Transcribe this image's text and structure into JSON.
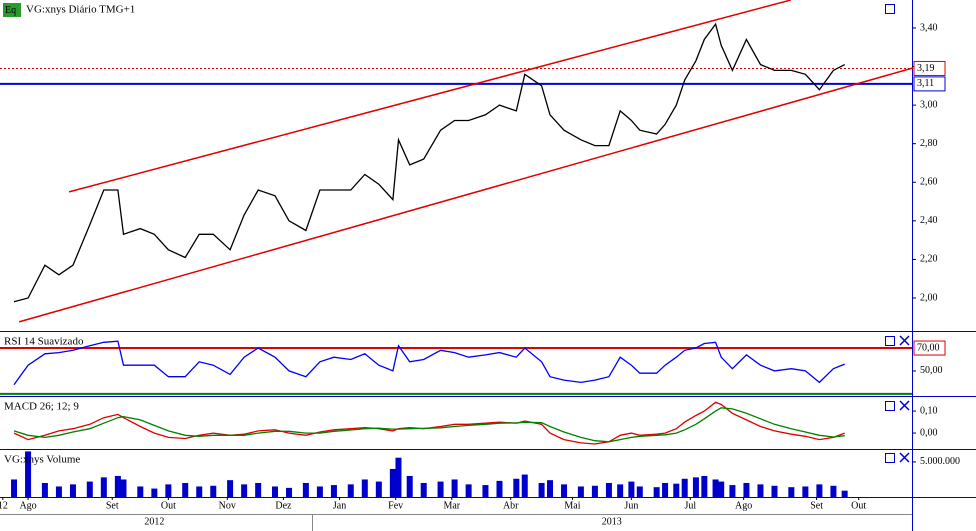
{
  "chart_data": [
    {
      "type": "line",
      "badge": "Eq",
      "title": "VG:xnys Diário TMG+1",
      "color": "#000000",
      "xlim": [
        -5,
        320
      ],
      "ylim": [
        1.834,
        3.545
      ],
      "x": [
        0,
        5,
        11,
        16,
        21,
        27,
        32,
        37,
        39,
        45,
        50,
        55,
        61,
        66,
        71,
        77,
        82,
        87,
        93,
        98,
        104,
        109,
        114,
        120,
        125,
        130,
        135,
        137,
        141,
        146,
        152,
        157,
        162,
        168,
        173,
        179,
        182,
        188,
        191,
        196,
        202,
        207,
        212,
        216,
        220,
        223,
        229,
        232,
        236,
        239,
        243,
        246,
        250,
        252,
        256,
        261,
        266,
        271,
        277,
        282,
        287,
        292,
        296
      ],
      "values": [
        1.98,
        2.0,
        2.17,
        2.12,
        2.17,
        2.38,
        2.56,
        2.56,
        2.33,
        2.36,
        2.33,
        2.25,
        2.21,
        2.33,
        2.33,
        2.25,
        2.43,
        2.56,
        2.53,
        2.4,
        2.35,
        2.56,
        2.56,
        2.56,
        2.64,
        2.59,
        2.51,
        2.82,
        2.69,
        2.72,
        2.87,
        2.92,
        2.92,
        2.95,
        3.0,
        2.97,
        3.16,
        3.1,
        2.95,
        2.87,
        2.82,
        2.79,
        2.79,
        2.97,
        2.92,
        2.87,
        2.85,
        2.9,
        3.0,
        3.13,
        3.23,
        3.34,
        3.42,
        3.31,
        3.18,
        3.34,
        3.21,
        3.18,
        3.18,
        3.16,
        3.08,
        3.18,
        3.21
      ],
      "yticks": [
        {
          "value": 3.4,
          "label": "3,40"
        },
        {
          "value": 3.2,
          "label": "3,20"
        },
        {
          "value": 3.0,
          "label": "3,00"
        },
        {
          "value": 2.8,
          "label": "2,80"
        },
        {
          "value": 2.6,
          "label": "2,60"
        },
        {
          "value": 2.4,
          "label": "2,40"
        },
        {
          "value": 2.2,
          "label": "2,20"
        },
        {
          "value": 2.0,
          "label": "2,00"
        }
      ],
      "levels": [
        {
          "value": 3.19,
          "label": "3,19",
          "color": "#e00000",
          "dash": true
        },
        {
          "value": 3.11,
          "label": "3,11",
          "color": "#0000e0"
        }
      ],
      "trendlines": [
        {
          "x": [
            19.6,
            276.8
          ],
          "values": [
            2.55,
            3.545
          ],
          "color": "#e00000"
        },
        {
          "x": [
            1.8,
            320.4
          ],
          "values": [
            1.876,
            3.193
          ],
          "color": "#e00000"
        }
      ]
    },
    {
      "type": "line",
      "title": "RSI 14 Suavizado",
      "color": "#0000ff",
      "xlim": [
        -5,
        320
      ],
      "ylim": [
        29,
        84
      ],
      "x": [
        0,
        5,
        11,
        16,
        21,
        27,
        32,
        37,
        39,
        45,
        50,
        55,
        61,
        66,
        71,
        77,
        82,
        87,
        93,
        98,
        104,
        109,
        114,
        120,
        125,
        130,
        135,
        137,
        141,
        146,
        152,
        157,
        162,
        168,
        173,
        179,
        182,
        188,
        191,
        196,
        202,
        207,
        212,
        216,
        220,
        223,
        229,
        232,
        236,
        239,
        243,
        246,
        250,
        252,
        256,
        261,
        266,
        271,
        277,
        282,
        287,
        292,
        296
      ],
      "values": [
        38,
        55,
        65,
        66,
        68,
        72,
        75,
        76,
        55,
        55,
        55,
        45,
        45,
        58,
        55,
        47,
        62,
        70,
        62,
        50,
        45,
        58,
        62,
        60,
        65,
        55,
        50,
        72,
        58,
        60,
        68,
        66,
        62,
        64,
        66,
        62,
        70,
        58,
        45,
        42,
        40,
        42,
        45,
        62,
        55,
        48,
        48,
        55,
        62,
        68,
        70,
        74,
        75,
        62,
        52,
        64,
        55,
        50,
        52,
        50,
        40,
        52,
        56
      ],
      "yticks": [
        {
          "value": 50,
          "label": "50,00"
        }
      ],
      "levels": [
        {
          "value": 70,
          "label": "70,00",
          "color": "#e00000"
        },
        {
          "value": 30,
          "color": "#008000"
        }
      ]
    },
    {
      "type": "line",
      "title": "MACD 26; 12; 9",
      "xlim": [
        -5,
        320
      ],
      "ylim": [
        -0.068,
        0.164
      ],
      "x": [
        0,
        5,
        11,
        16,
        21,
        27,
        32,
        37,
        39,
        45,
        50,
        55,
        61,
        66,
        71,
        77,
        82,
        87,
        93,
        98,
        104,
        109,
        114,
        120,
        125,
        130,
        135,
        137,
        141,
        146,
        152,
        157,
        162,
        168,
        173,
        179,
        182,
        188,
        191,
        196,
        202,
        207,
        212,
        216,
        220,
        223,
        229,
        232,
        236,
        239,
        243,
        246,
        250,
        252,
        256,
        261,
        266,
        271,
        277,
        282,
        287,
        292,
        296
      ],
      "series": [
        {
          "color": "#e00000",
          "values": [
            0,
            -0.03,
            -0.01,
            0.01,
            0.02,
            0.04,
            0.07,
            0.085,
            0.07,
            0.03,
            0,
            -0.02,
            -0.025,
            -0.01,
            0,
            -0.01,
            -0.005,
            0.01,
            0.015,
            0,
            -0.01,
            0.005,
            0.015,
            0.02,
            0.025,
            0.02,
            0.01,
            0.02,
            0.025,
            0.02,
            0.03,
            0.04,
            0.04,
            0.045,
            0.05,
            0.045,
            0.055,
            0.04,
            0,
            -0.03,
            -0.045,
            -0.05,
            -0.04,
            -0.01,
            0,
            -0.01,
            -0.005,
            0,
            0.02,
            0.05,
            0.08,
            0.1,
            0.14,
            0.13,
            0.09,
            0.06,
            0.03,
            0.01,
            -0.005,
            -0.015,
            -0.03,
            -0.02,
            0
          ]
        },
        {
          "color": "#008000",
          "values": [
            0.01,
            -0.01,
            -0.02,
            -0.01,
            0.005,
            0.02,
            0.045,
            0.07,
            0.075,
            0.06,
            0.035,
            0.01,
            -0.01,
            -0.015,
            -0.01,
            -0.01,
            -0.01,
            0,
            0.008,
            0.008,
            0,
            0,
            0.008,
            0.014,
            0.02,
            0.022,
            0.018,
            0.018,
            0.02,
            0.021,
            0.024,
            0.03,
            0.035,
            0.04,
            0.045,
            0.046,
            0.049,
            0.047,
            0.03,
            0.005,
            -0.02,
            -0.035,
            -0.04,
            -0.03,
            -0.02,
            -0.015,
            -0.01,
            -0.008,
            0,
            0.015,
            0.04,
            0.065,
            0.1,
            0.115,
            0.11,
            0.09,
            0.065,
            0.04,
            0.02,
            0.005,
            -0.01,
            -0.018,
            -0.012
          ]
        }
      ],
      "yticks": [
        {
          "value": 0.1,
          "label": "0,10"
        },
        {
          "value": 0,
          "label": "0,00"
        }
      ]
    },
    {
      "type": "bar",
      "title": "VG:xnys Volume",
      "color": "#0000cc",
      "xlim": [
        -5,
        320
      ],
      "ylim": [
        0,
        6700000
      ],
      "x": [
        0,
        5,
        11,
        16,
        21,
        27,
        32,
        37,
        39,
        45,
        50,
        55,
        61,
        66,
        71,
        77,
        82,
        87,
        93,
        98,
        104,
        109,
        114,
        120,
        125,
        130,
        135,
        137,
        141,
        146,
        152,
        157,
        162,
        168,
        173,
        179,
        182,
        188,
        191,
        196,
        202,
        207,
        212,
        216,
        220,
        223,
        229,
        232,
        236,
        239,
        243,
        246,
        250,
        252,
        256,
        261,
        266,
        271,
        277,
        282,
        287,
        292,
        296
      ],
      "values": [
        2500000,
        6500000,
        2000000,
        1500000,
        1800000,
        2200000,
        2800000,
        3000000,
        2500000,
        1500000,
        1200000,
        1800000,
        2000000,
        1500000,
        1600000,
        2400000,
        1800000,
        2000000,
        1500000,
        1300000,
        2000000,
        1500000,
        1700000,
        1800000,
        2500000,
        2200000,
        4000000,
        5600000,
        3000000,
        2000000,
        2200000,
        2500000,
        1800000,
        1700000,
        2300000,
        2600000,
        3200000,
        2000000,
        2400000,
        1800000,
        1500000,
        1600000,
        2000000,
        1800000,
        2200000,
        1500000,
        1400000,
        2000000,
        1900000,
        2600000,
        2800000,
        3000000,
        2500000,
        2200000,
        1700000,
        2000000,
        1800000,
        1600000,
        1400000,
        1500000,
        1800000,
        1600000,
        900000
      ],
      "yticks": [
        {
          "value": 5000000,
          "label": "5.000.000"
        }
      ],
      "xticks": [
        {
          "value": -4,
          "label": "12"
        },
        {
          "value": 5,
          "label": "Ago"
        },
        {
          "value": 35,
          "label": "Set"
        },
        {
          "value": 55,
          "label": "Out"
        },
        {
          "value": 76,
          "label": "Nov"
        },
        {
          "value": 96,
          "label": "Dez"
        },
        {
          "value": 116,
          "label": "Jan"
        },
        {
          "value": 136,
          "label": "Fev"
        },
        {
          "value": 156,
          "label": "Mar"
        },
        {
          "value": 177,
          "label": "Abr"
        },
        {
          "value": 199,
          "label": "Mai"
        },
        {
          "value": 220,
          "label": "Jun"
        },
        {
          "value": 241,
          "label": "Jul"
        },
        {
          "value": 260,
          "label": "Ago"
        },
        {
          "value": 286,
          "label": "Set"
        },
        {
          "value": 301,
          "label": "Out"
        }
      ],
      "year_ticks": [
        {
          "value": 50,
          "label": "2012"
        },
        {
          "value": 213,
          "label": "2013"
        }
      ]
    }
  ]
}
